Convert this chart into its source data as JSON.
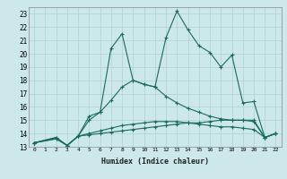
{
  "xlabel": "Humidex (Indice chaleur)",
  "ylabel": "",
  "bg_color": "#cce8e8",
  "grid_color": "#b0d0d0",
  "line_color": "#1a6b5a",
  "xlim": [
    -0.5,
    22.5
  ],
  "ylim": [
    13,
    23.5
  ],
  "xticks": [
    0,
    1,
    2,
    3,
    4,
    5,
    6,
    7,
    8,
    9,
    10,
    11,
    12,
    13,
    14,
    15,
    16,
    17,
    18,
    19,
    20,
    21,
    22
  ],
  "yticks": [
    13,
    14,
    15,
    16,
    17,
    18,
    19,
    20,
    21,
    22,
    23
  ],
  "series": [
    {
      "x": [
        0,
        2,
        3,
        4,
        5,
        6,
        7,
        8,
        9,
        10,
        11,
        12,
        13,
        14,
        15,
        16,
        17,
        18,
        19,
        20,
        21,
        22
      ],
      "y": [
        13.3,
        13.7,
        13.1,
        13.8,
        15.3,
        15.6,
        20.4,
        21.5,
        18.0,
        17.7,
        17.5,
        21.2,
        23.2,
        21.8,
        20.6,
        20.1,
        19.0,
        19.9,
        16.3,
        16.4,
        13.7,
        14.0
      ]
    },
    {
      "x": [
        0,
        2,
        3,
        4,
        5,
        6,
        7,
        8,
        9,
        10,
        11,
        12,
        13,
        14,
        15,
        16,
        17,
        18,
        19,
        20,
        21,
        22
      ],
      "y": [
        13.3,
        13.7,
        13.1,
        13.8,
        15.0,
        15.6,
        16.5,
        17.5,
        18.0,
        17.7,
        17.5,
        16.8,
        16.3,
        15.9,
        15.6,
        15.3,
        15.1,
        15.0,
        15.0,
        14.9,
        13.7,
        14.0
      ]
    },
    {
      "x": [
        0,
        2,
        3,
        4,
        5,
        6,
        7,
        8,
        9,
        10,
        11,
        12,
        13,
        14,
        15,
        16,
        17,
        18,
        19,
        20,
        21,
        22
      ],
      "y": [
        13.3,
        13.6,
        13.1,
        13.8,
        14.0,
        14.2,
        14.4,
        14.6,
        14.7,
        14.8,
        14.9,
        14.9,
        14.9,
        14.8,
        14.7,
        14.6,
        14.5,
        14.5,
        14.4,
        14.3,
        13.7,
        14.0
      ]
    },
    {
      "x": [
        0,
        2,
        3,
        4,
        5,
        6,
        7,
        8,
        9,
        10,
        11,
        12,
        13,
        14,
        15,
        16,
        17,
        18,
        19,
        20,
        21,
        22
      ],
      "y": [
        13.3,
        13.6,
        13.1,
        13.8,
        13.9,
        14.0,
        14.1,
        14.2,
        14.3,
        14.4,
        14.5,
        14.6,
        14.7,
        14.8,
        14.8,
        14.9,
        15.0,
        15.0,
        15.0,
        15.0,
        13.7,
        14.0
      ]
    }
  ]
}
